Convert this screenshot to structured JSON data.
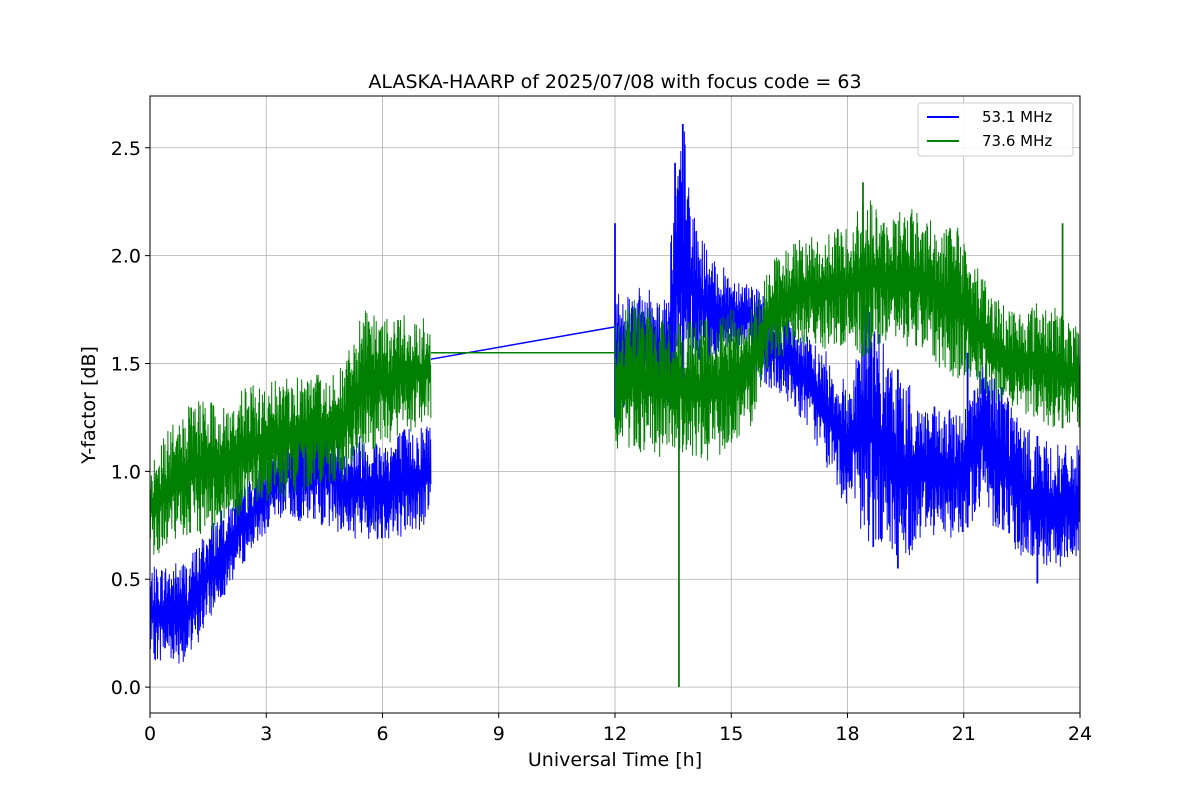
{
  "chart_data": {
    "type": "line",
    "title": "ALASKA-HAARP of 2025/07/08 with focus code = 63",
    "xlabel": "Universal Time [h]",
    "ylabel": "Y-factor [dB]",
    "xlim": [
      0,
      24
    ],
    "ylim": [
      -0.12,
      2.74
    ],
    "xticks": [
      0,
      3,
      6,
      9,
      12,
      15,
      18,
      21,
      24
    ],
    "xtick_labels": [
      "0",
      "3",
      "6",
      "9",
      "12",
      "15",
      "18",
      "21",
      "24"
    ],
    "yticks": [
      0.0,
      0.5,
      1.0,
      1.5,
      2.0,
      2.5
    ],
    "ytick_labels": [
      "0.0",
      "0.5",
      "1.0",
      "1.5",
      "2.0",
      "2.5"
    ],
    "grid": true,
    "legend_position": "top-right",
    "series": [
      {
        "name": "53.1 MHz",
        "color": "#0000ff",
        "envelope": {
          "x": [
            0,
            0.5,
            1.0,
            1.5,
            2.0,
            2.5,
            3.0,
            3.5,
            4.0,
            4.5,
            5.0,
            5.5,
            6.0,
            6.5,
            7.0,
            7.25
          ],
          "upper": [
            0.55,
            0.58,
            0.6,
            0.75,
            0.85,
            0.95,
            1.05,
            1.2,
            1.28,
            1.3,
            1.15,
            1.18,
            1.15,
            1.2,
            1.22,
            1.25
          ],
          "lower": [
            0.12,
            0.12,
            0.1,
            0.3,
            0.45,
            0.6,
            0.72,
            0.8,
            0.75,
            0.75,
            0.7,
            0.68,
            0.68,
            0.7,
            0.72,
            0.78
          ]
        },
        "gap_line": {
          "x": [
            7.25,
            12.0
          ],
          "y": [
            1.52,
            1.67
          ]
        },
        "envelope2": {
          "x": [
            12.0,
            12.5,
            13.0,
            13.3,
            13.6,
            13.8,
            14.0,
            14.5,
            15.0,
            15.5,
            15.9,
            16.5,
            17.0,
            17.5,
            18.0,
            18.5,
            19.0,
            19.5,
            20.0,
            20.5,
            21.0,
            21.5,
            22.0,
            22.5,
            23.0,
            23.5,
            24.0
          ],
          "upper": [
            1.85,
            1.85,
            1.85,
            1.8,
            2.45,
            2.6,
            2.2,
            1.98,
            1.92,
            1.88,
            1.8,
            1.72,
            1.62,
            1.55,
            1.4,
            1.82,
            1.55,
            1.42,
            1.32,
            1.28,
            1.3,
            1.52,
            1.45,
            1.22,
            1.15,
            1.12,
            1.12
          ],
          "lower": [
            1.25,
            1.35,
            1.3,
            1.25,
            1.35,
            1.3,
            1.5,
            1.5,
            1.55,
            1.55,
            1.35,
            1.32,
            1.2,
            1.0,
            0.82,
            0.65,
            0.62,
            0.58,
            0.72,
            0.68,
            0.72,
            0.82,
            0.68,
            0.6,
            0.55,
            0.55,
            0.6
          ]
        },
        "spikes": [
          {
            "x": 12.0,
            "y": 2.15
          },
          {
            "x": 13.75,
            "y": 2.61
          },
          {
            "x": 13.55,
            "y": 2.43
          },
          {
            "x": 21.1,
            "y": 1.55
          },
          {
            "x": 19.3,
            "y": 0.55
          },
          {
            "x": 22.9,
            "y": 0.48
          }
        ]
      },
      {
        "name": "73.6 MHz",
        "color": "#008000",
        "envelope": {
          "x": [
            0,
            0.5,
            1.0,
            1.5,
            2.0,
            2.5,
            3.0,
            3.5,
            4.0,
            4.5,
            5.0,
            5.5,
            6.0,
            6.5,
            7.0,
            7.25
          ],
          "upper": [
            1.05,
            1.2,
            1.3,
            1.35,
            1.3,
            1.4,
            1.4,
            1.45,
            1.45,
            1.45,
            1.5,
            1.75,
            1.7,
            1.75,
            1.72,
            1.7
          ],
          "lower": [
            0.6,
            0.65,
            0.68,
            0.72,
            0.75,
            0.82,
            0.85,
            0.88,
            0.9,
            0.95,
            0.95,
            1.05,
            1.12,
            1.15,
            1.2,
            1.22
          ]
        },
        "gap_line": {
          "x": [
            7.25,
            12.0
          ],
          "y": [
            1.55,
            1.55
          ]
        },
        "envelope2": {
          "x": [
            12.0,
            12.5,
            13.0,
            13.5,
            14.0,
            14.5,
            15.0,
            15.5,
            15.9,
            16.5,
            17.0,
            17.5,
            18.0,
            18.5,
            19.0,
            19.5,
            20.0,
            20.5,
            21.0,
            21.5,
            22.0,
            22.5,
            23.0,
            23.5,
            24.0
          ],
          "upper": [
            1.75,
            1.8,
            1.75,
            1.68,
            1.7,
            1.72,
            1.75,
            1.75,
            1.95,
            2.05,
            2.1,
            2.1,
            2.15,
            2.3,
            2.15,
            2.25,
            2.2,
            2.15,
            2.12,
            1.9,
            1.78,
            1.75,
            1.8,
            1.75,
            1.65
          ],
          "lower": [
            1.1,
            1.1,
            1.05,
            1.1,
            1.05,
            1.05,
            1.12,
            1.2,
            1.45,
            1.55,
            1.6,
            1.55,
            1.58,
            1.52,
            1.6,
            1.58,
            1.55,
            1.45,
            1.42,
            1.35,
            1.3,
            1.28,
            1.22,
            1.2,
            1.2
          ]
        },
        "spikes": [
          {
            "x": 13.65,
            "y": 0.0
          },
          {
            "x": 18.4,
            "y": 2.34
          },
          {
            "x": 23.55,
            "y": 2.15
          }
        ]
      }
    ]
  }
}
